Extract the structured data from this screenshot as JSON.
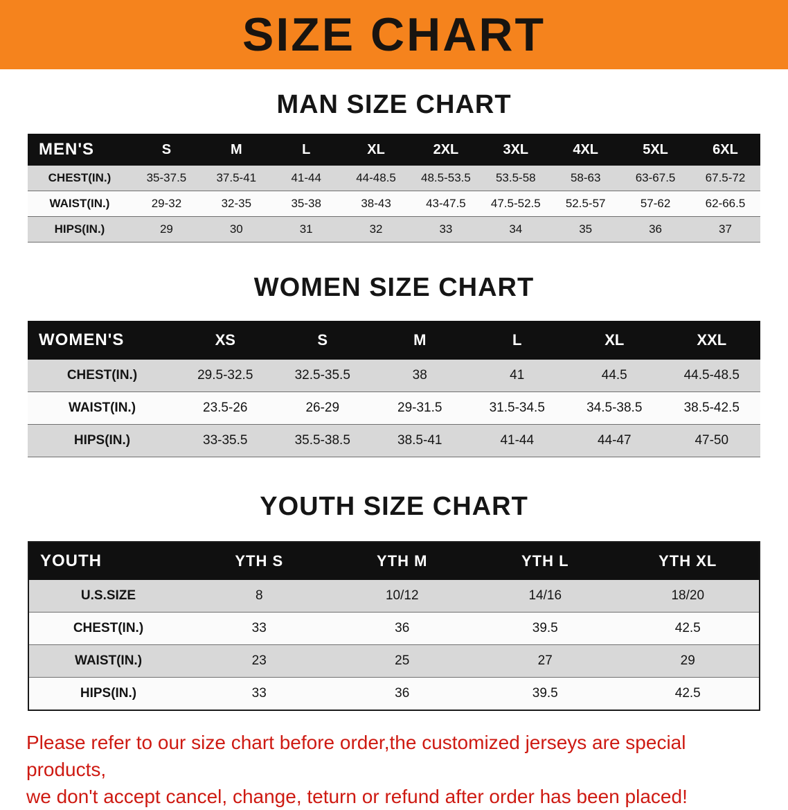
{
  "banner": {
    "title": "SIZE CHART"
  },
  "men": {
    "heading": "MAN SIZE CHART",
    "header": [
      "MEN'S",
      "S",
      "M",
      "L",
      "XL",
      "2XL",
      "3XL",
      "4XL",
      "5XL",
      "6XL"
    ],
    "rows": [
      [
        "CHEST(IN.)",
        "35-37.5",
        "37.5-41",
        "41-44",
        "44-48.5",
        "48.5-53.5",
        "53.5-58",
        "58-63",
        "63-67.5",
        "67.5-72"
      ],
      [
        "WAIST(IN.)",
        "29-32",
        "32-35",
        "35-38",
        "38-43",
        "43-47.5",
        "47.5-52.5",
        "52.5-57",
        "57-62",
        "62-66.5"
      ],
      [
        "HIPS(IN.)",
        "29",
        "30",
        "31",
        "32",
        "33",
        "34",
        "35",
        "36",
        "37"
      ]
    ]
  },
  "women": {
    "heading": "WOMEN SIZE CHART",
    "header": [
      "WOMEN'S",
      "XS",
      "S",
      "M",
      "L",
      "XL",
      "XXL"
    ],
    "rows": [
      [
        "CHEST(IN.)",
        "29.5-32.5",
        "32.5-35.5",
        "38",
        "41",
        "44.5",
        "44.5-48.5"
      ],
      [
        "WAIST(IN.)",
        "23.5-26",
        "26-29",
        "29-31.5",
        "31.5-34.5",
        "34.5-38.5",
        "38.5-42.5"
      ],
      [
        "HIPS(IN.)",
        "33-35.5",
        "35.5-38.5",
        "38.5-41",
        "41-44",
        "44-47",
        "47-50"
      ]
    ]
  },
  "youth": {
    "heading": "YOUTH SIZE CHART",
    "header": [
      "YOUTH",
      "YTH S",
      "YTH M",
      "YTH L",
      "YTH XL"
    ],
    "rows": [
      [
        "U.S.SIZE",
        "8",
        "10/12",
        "14/16",
        "18/20"
      ],
      [
        "CHEST(IN.)",
        "33",
        "36",
        "39.5",
        "42.5"
      ],
      [
        "WAIST(IN.)",
        "23",
        "25",
        "27",
        "29"
      ],
      [
        "HIPS(IN.)",
        "33",
        "36",
        "39.5",
        "42.5"
      ]
    ]
  },
  "disclaimer": {
    "line1": "Please refer to our size chart before order,the customized jerseys are special products,",
    "line2": "we don't accept cancel, change, teturn or refund after order has been placed!"
  },
  "colors": {
    "banner_bg": "#f5831d",
    "header_bg": "#101010",
    "row_alt_bg": "#d8d8d8",
    "disclaimer_color": "#ce1a12"
  }
}
